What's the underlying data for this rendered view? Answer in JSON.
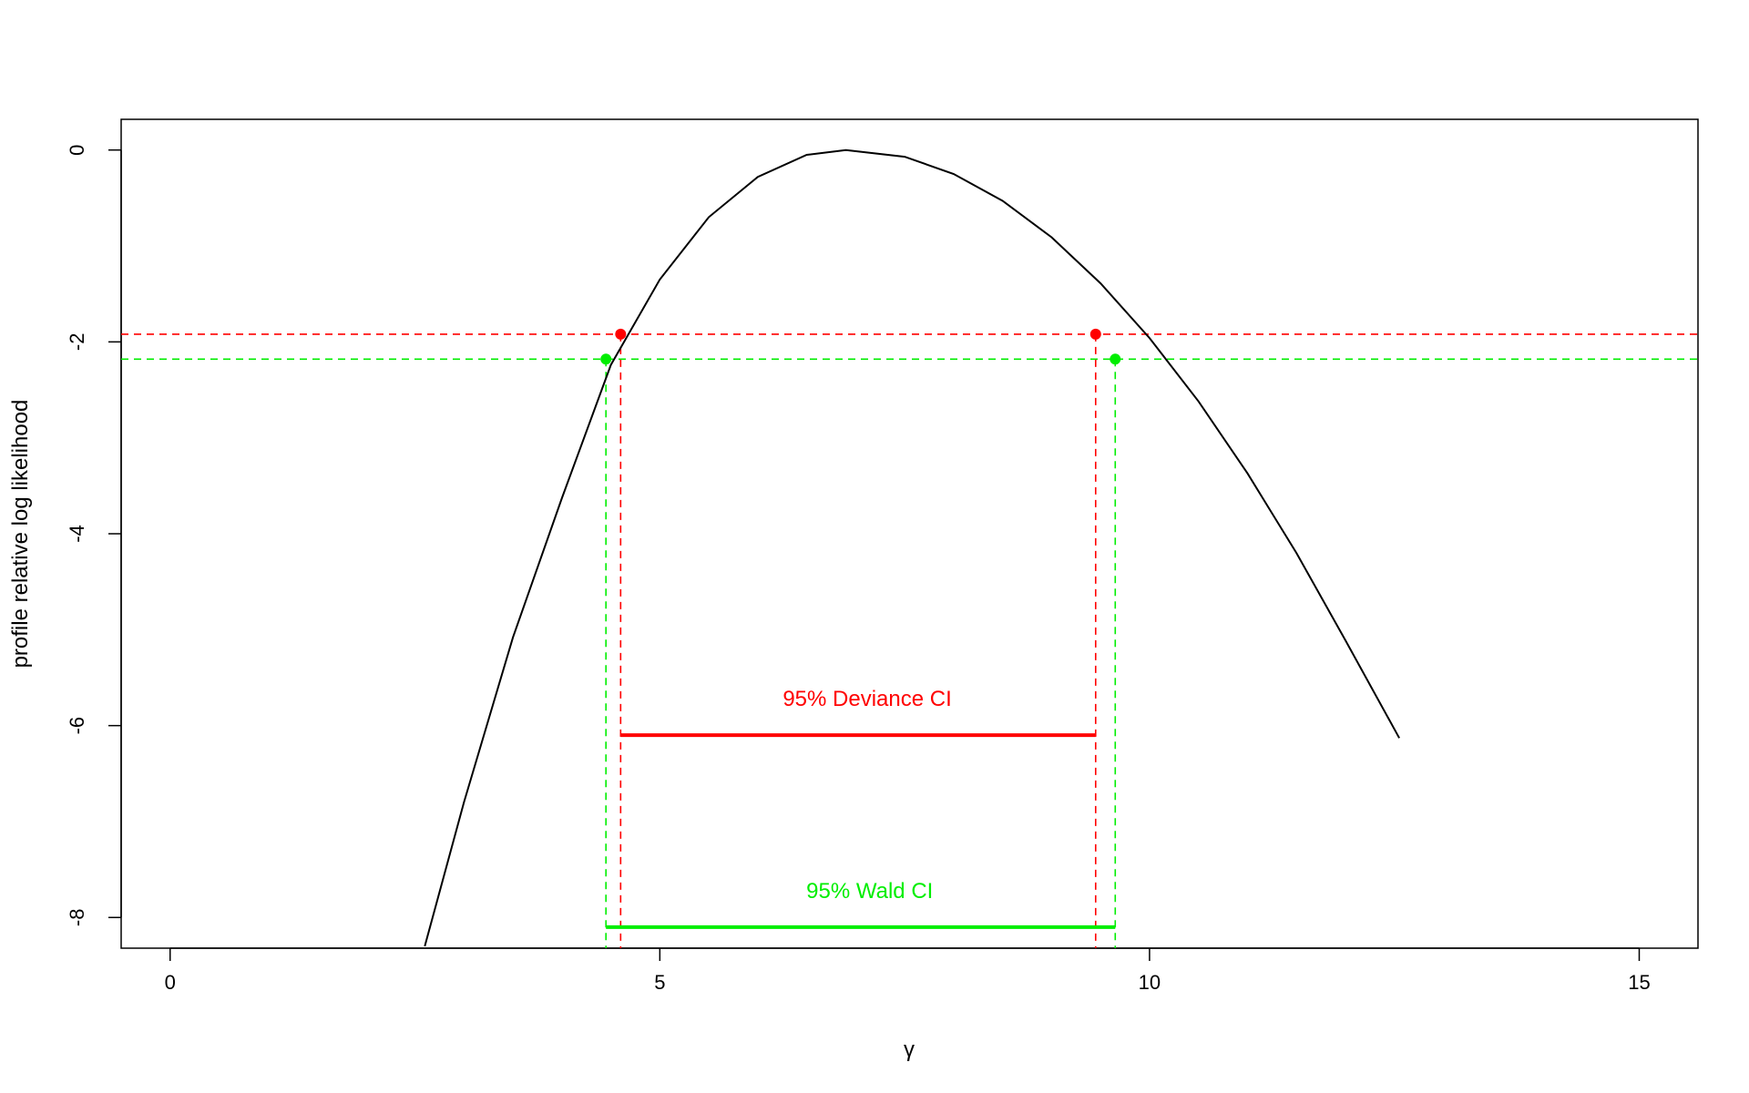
{
  "chart_data": {
    "type": "line",
    "title": "",
    "xlabel": "γ",
    "ylabel": "profile relative log likelihood",
    "xlim": [
      -0.5,
      15.6
    ],
    "ylim": [
      -8.32,
      0.32
    ],
    "xticks": [
      0,
      5,
      10,
      15
    ],
    "yticks": [
      0,
      -2,
      -4,
      -6,
      -8
    ],
    "grid": false,
    "mle": 6.9,
    "curve": {
      "x": [
        2.6,
        3.0,
        3.5,
        4.0,
        4.5,
        5.0,
        5.5,
        6.0,
        6.5,
        6.9,
        7.5,
        8.0,
        8.5,
        9.0,
        9.5,
        10.0,
        10.5,
        11.0,
        11.5,
        12.0,
        12.55
      ],
      "y": [
        -8.3,
        -6.8,
        -5.08,
        -3.63,
        -2.24,
        -1.35,
        -0.7,
        -0.28,
        -0.05,
        0.0,
        -0.07,
        -0.25,
        -0.53,
        -0.91,
        -1.39,
        -1.96,
        -2.62,
        -3.37,
        -4.2,
        -5.11,
        -6.13
      ]
    },
    "deviance_ci": {
      "label": "95% Deviance CI",
      "lower": 4.6,
      "upper": 9.45,
      "cutoff": -1.92,
      "bar_y": -6.1,
      "color": "#ff0000"
    },
    "wald_ci": {
      "label": "95% Wald CI",
      "lower": 4.45,
      "upper": 9.65,
      "cutoff": -2.18,
      "bar_y": -8.1,
      "color": "#00ee00"
    }
  }
}
